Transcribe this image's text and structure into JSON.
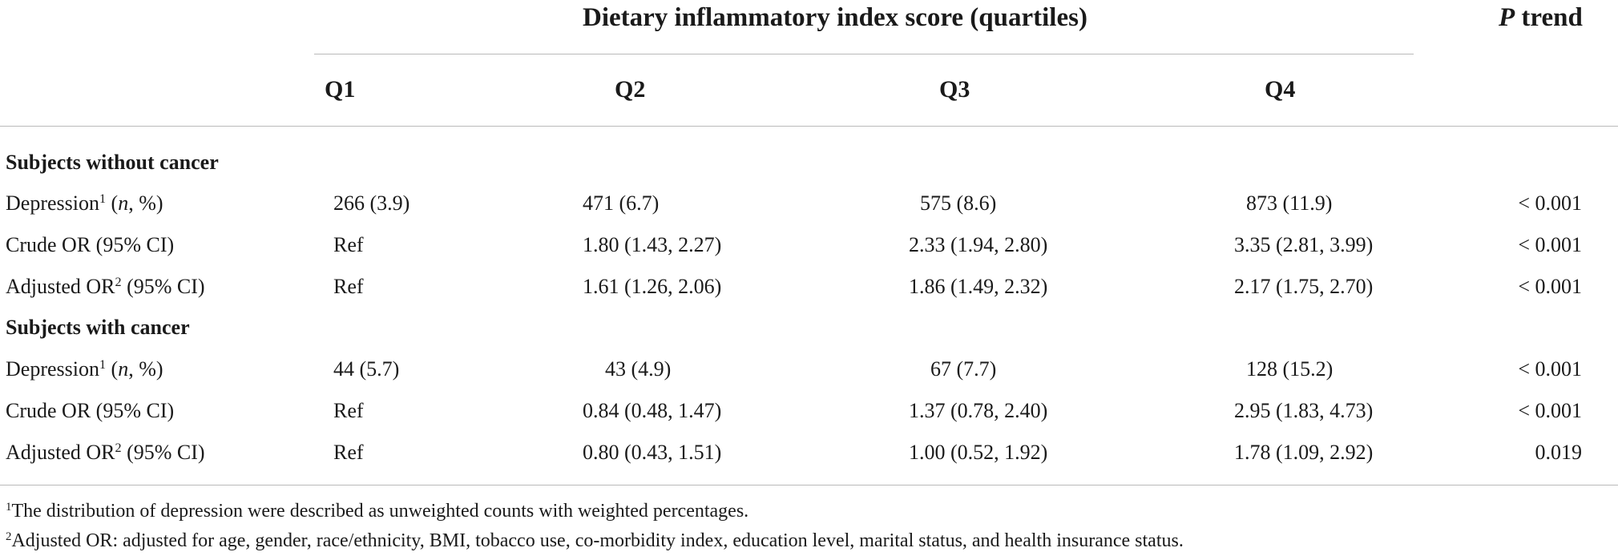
{
  "table": {
    "group_header": "Dietary inflammatory index score (quartiles)",
    "p_trend_letter": "P",
    "p_trend_word": "trend",
    "quartiles": [
      "Q1",
      "Q2",
      "Q3",
      "Q4"
    ],
    "sections": [
      {
        "title": "Subjects without cancer",
        "rows": [
          {
            "label": "Depression",
            "sup": "1",
            "paren_open": " (",
            "italic": "n",
            "paren_rest": ", %)",
            "cells": [
              "266 (3.9)",
              "471 (6.7)",
              "575 (8.6)",
              "873 (11.9)"
            ],
            "p": "< 0.001"
          },
          {
            "label": "Crude OR (95% CI)",
            "cells": [
              "Ref",
              "1.80 (1.43, 2.27)",
              "2.33 (1.94, 2.80)",
              "3.35 (2.81, 3.99)"
            ],
            "p": "< 0.001"
          },
          {
            "label": "Adjusted OR",
            "sup": "2",
            "rest": " (95% CI)",
            "cells": [
              "Ref",
              "1.61 (1.26, 2.06)",
              "1.86 (1.49, 2.32)",
              "2.17 (1.75, 2.70)"
            ],
            "p": "< 0.001"
          }
        ]
      },
      {
        "title": "Subjects with cancer",
        "rows": [
          {
            "label": "Depression",
            "sup": "1",
            "paren_open": " (",
            "italic": "n",
            "paren_rest": ", %)",
            "cells": [
              "44 (5.7)",
              "43 (4.9)",
              "67 (7.7)",
              "128 (15.2)"
            ],
            "p": "< 0.001"
          },
          {
            "label": "Crude OR (95% CI)",
            "cells": [
              "Ref",
              "0.84 (0.48, 1.47)",
              "1.37 (0.78, 2.40)",
              "2.95 (1.83, 4.73)"
            ],
            "p": "< 0.001"
          },
          {
            "label": "Adjusted OR",
            "sup": "2",
            "rest": " (95% CI)",
            "cells": [
              "Ref",
              "0.80 (0.43, 1.51)",
              "1.00 (0.52, 1.92)",
              "1.78 (1.09, 2.92)"
            ],
            "p": "0.019"
          }
        ]
      }
    ]
  },
  "footnotes": [
    {
      "mark": "1",
      "text": "The distribution of depression were described as unweighted counts with weighted percentages."
    },
    {
      "mark": "2",
      "text": "Adjusted OR: adjusted for age, gender, race/ethnicity, BMI, tobacco use, co-morbidity index, education level, marital status, and health insurance status."
    }
  ]
}
